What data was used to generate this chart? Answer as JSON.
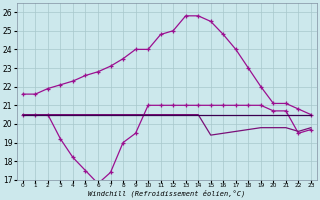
{
  "xlabel": "Windchill (Refroidissement éolien,°C)",
  "x": [
    0,
    1,
    2,
    3,
    4,
    5,
    6,
    7,
    8,
    9,
    10,
    11,
    12,
    13,
    14,
    15,
    16,
    17,
    18,
    19,
    20,
    21,
    22,
    23
  ],
  "line1_y": [
    21.6,
    21.6,
    21.9,
    22.1,
    22.3,
    22.6,
    22.8,
    23.1,
    23.5,
    24.0,
    24.0,
    24.8,
    25.0,
    25.8,
    25.8,
    25.5,
    24.8,
    24.0,
    23.0,
    22.0,
    21.1,
    21.1,
    20.8,
    20.5
  ],
  "line2_y": [
    20.5,
    20.5,
    20.5,
    19.2,
    18.2,
    17.5,
    16.8,
    17.4,
    19.0,
    19.5,
    21.0,
    21.0,
    21.0,
    21.0,
    21.0,
    21.0,
    21.0,
    21.0,
    21.0,
    21.0,
    20.7,
    20.7,
    19.5,
    19.7
  ],
  "line3_y": [
    20.5,
    20.5,
    20.5,
    20.5,
    20.5,
    20.5,
    20.5,
    20.5,
    20.5,
    20.5,
    20.5,
    20.5,
    20.5,
    20.5,
    20.5,
    19.4,
    19.5,
    19.6,
    19.7,
    19.8,
    19.8,
    19.8,
    19.6,
    19.8
  ],
  "line4_y": [
    20.5,
    20.5,
    20.5,
    20.5,
    20.5,
    20.5,
    20.5,
    20.5,
    20.5,
    20.5,
    20.5,
    20.5,
    20.5,
    20.5,
    20.5,
    20.5,
    20.5,
    20.5,
    20.5,
    20.5,
    20.5,
    20.5,
    20.5,
    20.5
  ],
  "color_bright": "#9b1090",
  "color_mid": "#7a1078",
  "color_dark1": "#5a0860",
  "color_dark2": "#3a0050",
  "bg_color": "#cce8ec",
  "grid_color": "#a8c8cc",
  "ylim_min": 17,
  "ylim_max": 26.5,
  "yticks": [
    17,
    18,
    19,
    20,
    21,
    22,
    23,
    24,
    25,
    26
  ]
}
